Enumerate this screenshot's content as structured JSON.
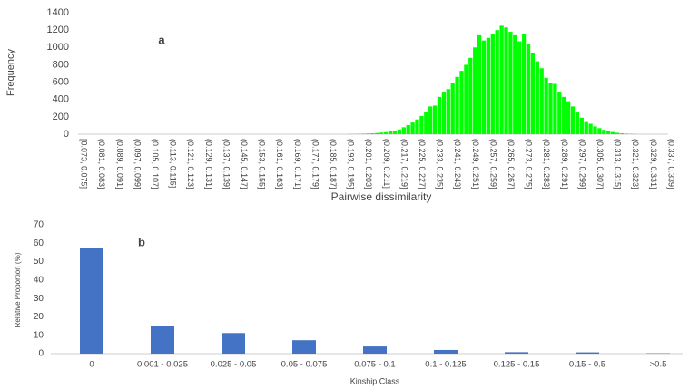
{
  "chart_data": [
    {
      "type": "bar",
      "title": "a",
      "y_label": "Frequency",
      "x_label": "Pairwise dissimilarity",
      "color": "#00ff00",
      "ylim": [
        0,
        1400
      ],
      "yticks": [
        0,
        200,
        400,
        600,
        800,
        1000,
        1200,
        1400
      ],
      "grid": false,
      "categories": [
        "[0.073, 0.075]",
        null,
        null,
        null,
        "(0.081, 0.083]",
        null,
        null,
        null,
        "(0.089, 0.091]",
        null,
        null,
        null,
        "(0.097, 0.099]",
        null,
        null,
        null,
        "(0.105, 0.107]",
        null,
        null,
        null,
        "(0.113, 0.115]",
        null,
        null,
        null,
        "(0.121, 0.123]",
        null,
        null,
        null,
        "(0.129, 0.131]",
        null,
        null,
        null,
        "(0.137, 0.139]",
        null,
        null,
        null,
        "(0.145, 0.147]",
        null,
        null,
        null,
        "(0.153, 0.155]",
        null,
        null,
        null,
        "(0.161, 0.163]",
        null,
        null,
        null,
        "(0.169, 0.171]",
        null,
        null,
        null,
        "(0.177, 0.179]",
        null,
        null,
        null,
        "(0.185, 0.187]",
        null,
        null,
        null,
        "(0.193, 0.195]",
        null,
        null,
        null,
        "(0.201, 0.203]",
        null,
        null,
        null,
        "(0.209, 0.211]",
        null,
        null,
        null,
        "(0.217, 0.219]",
        null,
        null,
        null,
        "(0.225, 0.227]",
        null,
        null,
        null,
        "(0.233, 0.235]",
        null,
        null,
        null,
        "(0.241, 0.243]",
        null,
        null,
        null,
        "(0.249, 0.251]",
        null,
        null,
        null,
        "(0.257, 0.259]",
        null,
        null,
        null,
        "(0.265, 0.267]",
        null,
        null,
        null,
        "(0.273, 0.275]",
        null,
        null,
        null,
        "(0.281, 0.283]",
        null,
        null,
        null,
        "(0.289, 0.291]",
        null,
        null,
        null,
        "(0.297, 0.299]",
        null,
        null,
        null,
        "(0.305, 0.307]",
        null,
        null,
        null,
        "(0.313, 0.315]",
        null,
        null,
        null,
        "(0.321, 0.323]",
        null,
        null,
        null,
        "(0.329, 0.331]",
        null,
        null,
        null,
        "(0.337, 0.339]"
      ],
      "values": [
        0,
        0,
        0,
        0,
        0,
        0,
        0,
        0,
        0,
        0,
        0,
        0,
        0,
        0,
        0,
        0,
        0,
        0,
        0,
        0,
        0,
        0,
        0,
        0,
        0,
        0,
        0,
        0,
        0,
        0,
        0,
        0,
        0,
        0,
        0,
        0,
        0,
        0,
        0,
        0,
        0,
        0,
        0,
        0,
        0,
        0,
        0,
        0,
        0,
        0,
        0,
        0,
        0,
        0,
        0,
        0,
        0,
        0,
        0,
        0,
        2,
        3,
        4,
        6,
        8,
        10,
        14,
        18,
        24,
        32,
        42,
        55,
        80,
        105,
        135,
        170,
        210,
        260,
        320,
        330,
        430,
        480,
        520,
        590,
        660,
        730,
        800,
        880,
        1000,
        1140,
        1080,
        1110,
        1150,
        1200,
        1250,
        1230,
        1180,
        1140,
        1070,
        1150,
        1040,
        930,
        840,
        760,
        650,
        590,
        580,
        480,
        430,
        380,
        320,
        250,
        190,
        150,
        120,
        90,
        70,
        50,
        35,
        25,
        16,
        10,
        6,
        4,
        2,
        0,
        0,
        0,
        0,
        0,
        0,
        0,
        0
      ]
    },
    {
      "type": "bar",
      "title": "b",
      "y_label": "Relative Proportion (%)",
      "x_label": "Kinship Class",
      "color": "#4472c4",
      "ylim": [
        0,
        70
      ],
      "yticks": [
        0,
        10,
        20,
        30,
        40,
        50,
        60,
        70
      ],
      "grid": false,
      "categories": [
        "0",
        "0.001 - 0.025",
        "0.025 - 0.05",
        "0.05 - 0.075",
        "0.075 - 0.1",
        "0.1 - 0.125",
        "0.125 - 0.15",
        "0.15 - 0.5",
        ">0.5"
      ],
      "values": [
        57.5,
        14.8,
        11.2,
        7.3,
        3.9,
        2.0,
        0.8,
        0.7,
        0.2
      ]
    }
  ]
}
